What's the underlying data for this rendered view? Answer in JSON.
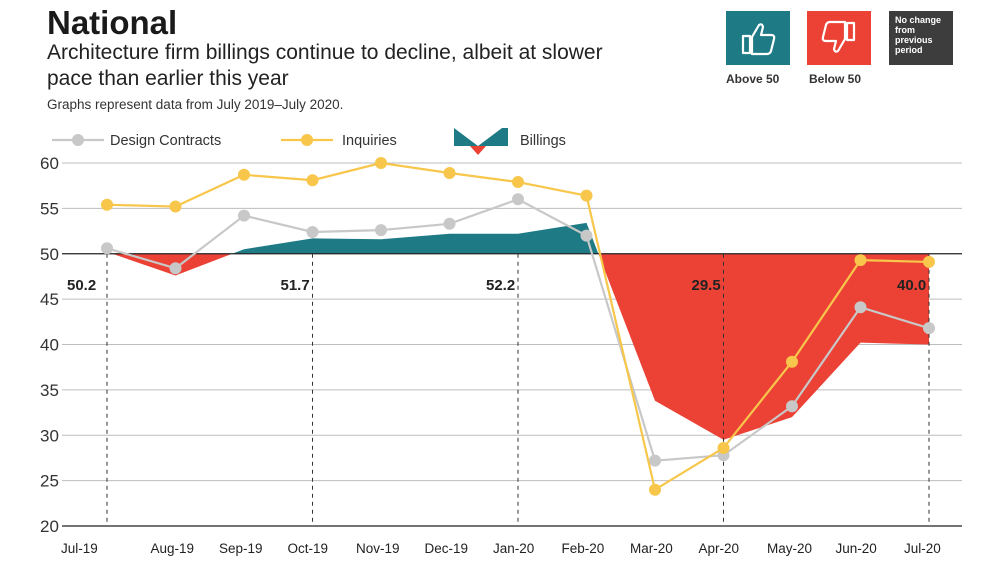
{
  "header": {
    "title": "National",
    "subtitle": "Architecture firm billings continue to decline, albeit at slower pace than earlier this year",
    "note": "Graphs represent data from July 2019–July 2020."
  },
  "key": {
    "above_label": "Above 50",
    "below_label": "Below 50",
    "no_change_label": "No change from previous period"
  },
  "colors": {
    "above": "#1e7b85",
    "below": "#ec4236",
    "inquiries": "#f7c64a",
    "design": "#c8c8c8",
    "neutral": "#3d3d3d"
  },
  "chart_data": {
    "type": "line",
    "categories": [
      "Jul-19",
      "Aug-19",
      "Sep-19",
      "Oct-19",
      "Nov-19",
      "Dec-19",
      "Jan-20",
      "Feb-20",
      "Mar-20",
      "Apr-20",
      "May-20",
      "Jun-20",
      "Jul-20"
    ],
    "y_ticks": [
      60,
      55,
      50,
      45,
      40,
      35,
      30,
      25,
      20
    ],
    "ylim": [
      20,
      60
    ],
    "baseline": 50,
    "series": [
      {
        "name": "Design Contracts",
        "values": [
          50.6,
          48.4,
          54.2,
          52.4,
          52.6,
          53.3,
          56.0,
          52.0,
          27.2,
          27.8,
          33.2,
          44.1,
          41.8
        ]
      },
      {
        "name": "Inquiries",
        "values": [
          55.4,
          55.2,
          58.7,
          58.1,
          60.0,
          58.9,
          57.9,
          56.4,
          24.0,
          28.6,
          38.1,
          49.3,
          49.1
        ]
      },
      {
        "name": "Billings",
        "values": [
          50.2,
          47.6,
          50.5,
          51.7,
          51.6,
          52.2,
          52.2,
          53.4,
          33.8,
          29.5,
          32.0,
          40.2,
          40.0
        ]
      }
    ],
    "callouts": [
      {
        "category": "Jul-19",
        "label": "50.2"
      },
      {
        "category": "Oct-19",
        "label": "51.7"
      },
      {
        "category": "Jan-20",
        "label": "52.2"
      },
      {
        "category": "Apr-20",
        "label": "29.5"
      },
      {
        "category": "Jul-20",
        "label": "40.0"
      }
    ],
    "legend": "top-left"
  }
}
